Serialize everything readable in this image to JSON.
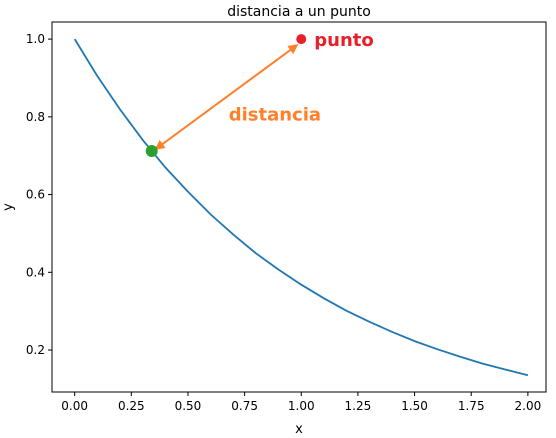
{
  "chart_data": {
    "type": "line",
    "title": "distancia a un punto",
    "xlabel": "x",
    "ylabel": "y",
    "xlim": [
      -0.1,
      2.08
    ],
    "ylim": [
      0.092,
      1.044
    ],
    "xticks": [
      0.0,
      0.25,
      0.5,
      0.75,
      1.0,
      1.25,
      1.5,
      1.75,
      2.0
    ],
    "xtick_labels": [
      "0.00",
      "0.25",
      "0.50",
      "0.75",
      "1.00",
      "1.25",
      "1.50",
      "1.75",
      "2.00"
    ],
    "yticks": [
      0.2,
      0.4,
      0.6,
      0.8,
      1.0
    ],
    "ytick_labels": [
      "0.2",
      "0.4",
      "0.6",
      "0.8",
      "1.0"
    ],
    "grid": false,
    "series": [
      {
        "color": "#1f77b4",
        "x": [
          0,
          0.1,
          0.2,
          0.3,
          0.4,
          0.5,
          0.6,
          0.7,
          0.8,
          0.9,
          1.0,
          1.1,
          1.2,
          1.3,
          1.4,
          1.5,
          1.6,
          1.7,
          1.8,
          1.9,
          2.0
        ],
        "y": [
          1.0,
          0.905,
          0.819,
          0.741,
          0.67,
          0.607,
          0.549,
          0.497,
          0.449,
          0.407,
          0.368,
          0.333,
          0.301,
          0.273,
          0.247,
          0.223,
          0.202,
          0.183,
          0.165,
          0.15,
          0.135
        ]
      }
    ],
    "points": [
      {
        "label": "punto",
        "x": 1.0,
        "y": 1.0,
        "color": "#e8202a"
      },
      {
        "label": "",
        "x": 0.34,
        "y": 0.712,
        "color": "#2ca02c"
      }
    ],
    "annotation": {
      "label": "distancia",
      "color": "#ff7f2a",
      "from": {
        "x": 0.36,
        "y": 0.718
      },
      "to": {
        "x": 0.98,
        "y": 0.984
      },
      "text_x": 0.68,
      "text_y": 0.79
    }
  }
}
